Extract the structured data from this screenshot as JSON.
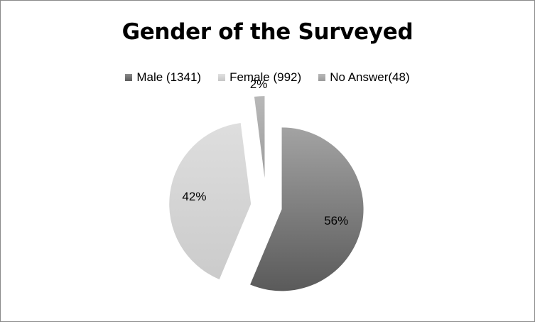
{
  "chart_data": {
    "type": "pie",
    "title": "Gender of the Surveyed",
    "legend_position": "top",
    "categories": [
      "Male (1341)",
      "Female (992)",
      "No Answer(48)"
    ],
    "values": [
      1341,
      992,
      48
    ],
    "percent_labels": [
      "56%",
      "42%",
      "2%"
    ],
    "colors": [
      "#6e6e6e",
      "#d2d2d2",
      "#a8a8a8"
    ],
    "exploded": true
  }
}
